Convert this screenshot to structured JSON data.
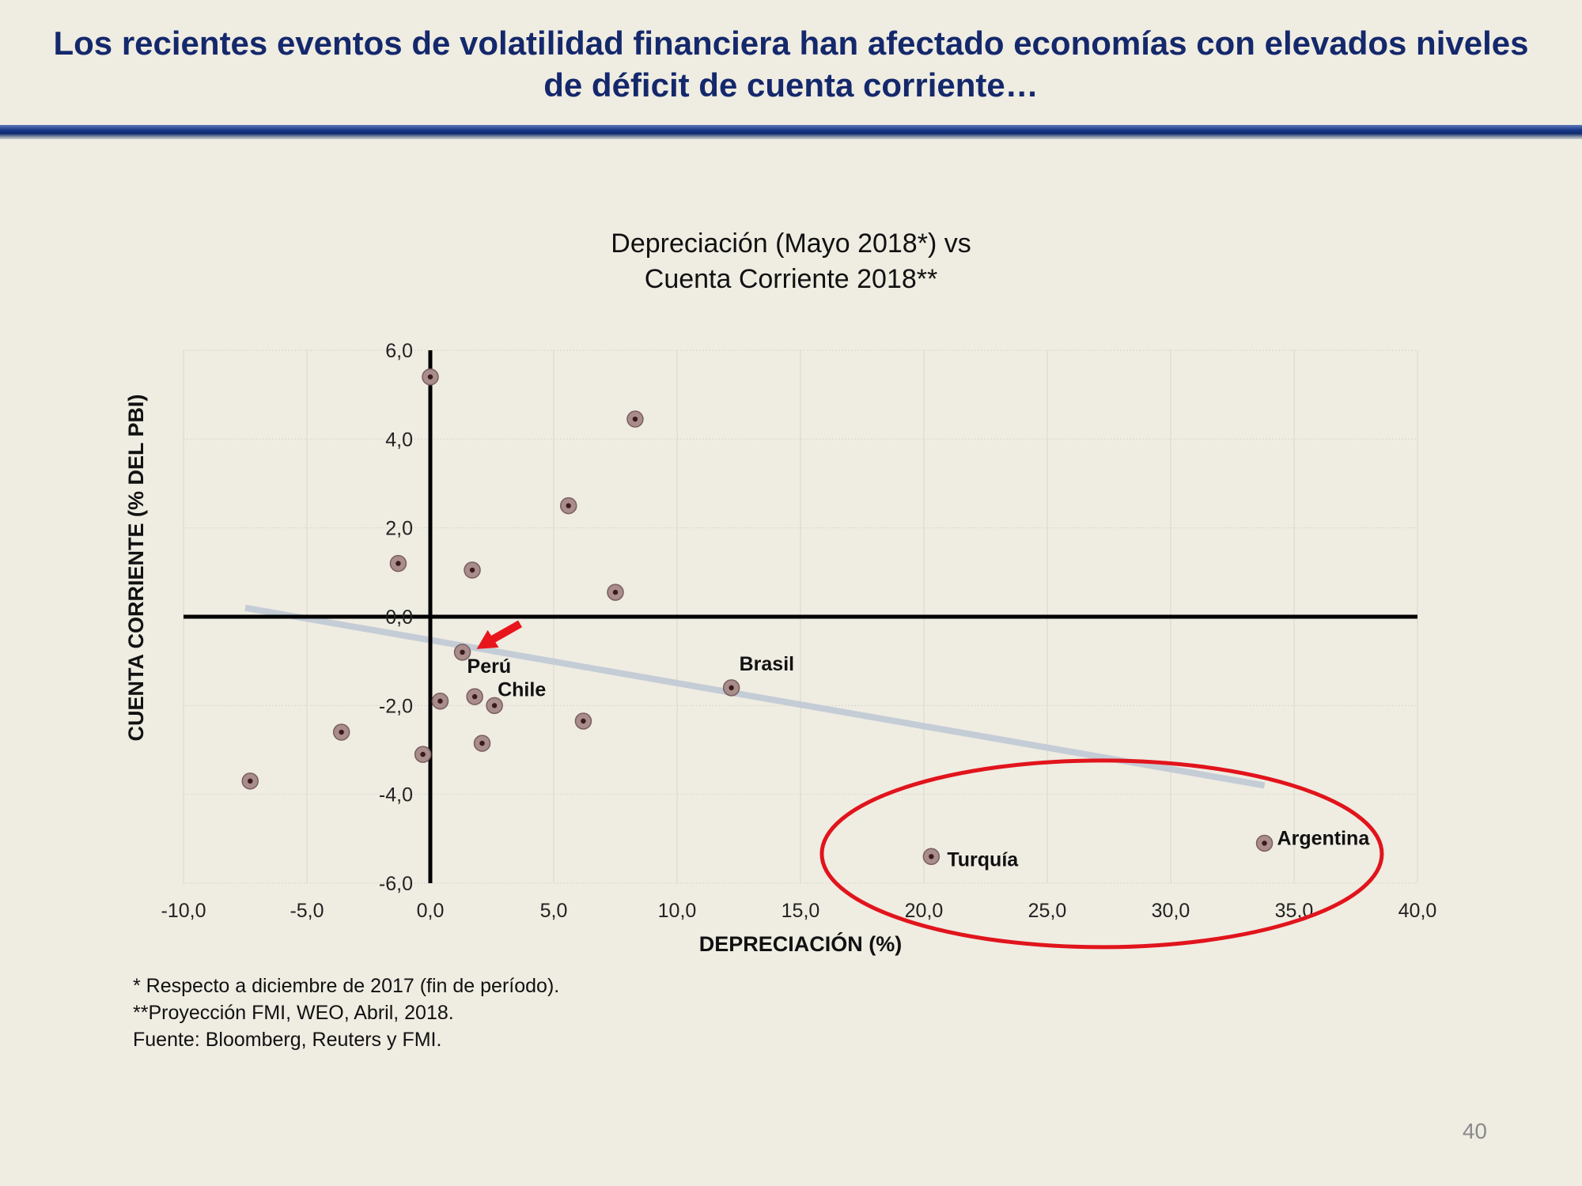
{
  "slide": {
    "title": "Los recientes eventos de volatilidad financiera han afectado economías con elevados niveles de déficit de cuenta corriente…",
    "page_number": "40"
  },
  "footnotes": {
    "note1": "* Respecto a diciembre de 2017 (fin de período).",
    "note2": "**Proyección FMI, WEO, Abril, 2018.",
    "note3": "Fuente: Bloomberg, Reuters y FMI."
  },
  "colors": {
    "background": "#efece2",
    "title_text": "#14286b",
    "marker_fill": "#a98c8c",
    "marker_dot": "#3a1a1a",
    "trendline": "#c4ccd6",
    "highlight_ellipse": "#e1141c",
    "arrow": "#e8161c",
    "grid": "#d9d6cf"
  },
  "chart_data": {
    "type": "scatter",
    "title_line1": "Depreciación (Mayo 2018*) vs",
    "title_line2": "Cuenta Corriente 2018**",
    "xlabel": "DEPRECIACIÓN (%)",
    "ylabel": "CUENTA CORRIENTE (% DEL PBI)",
    "xlim": [
      -10,
      40
    ],
    "ylim": [
      -6,
      6
    ],
    "x_ticks": [
      -10,
      -5,
      0,
      5,
      10,
      15,
      20,
      25,
      30,
      35,
      40
    ],
    "y_ticks": [
      -6,
      -4,
      -2,
      0,
      2,
      4,
      6
    ],
    "x_tick_labels": [
      "-10,0",
      "-5,0",
      "0,0",
      "5,0",
      "10,0",
      "15,0",
      "20,0",
      "25,0",
      "30,0",
      "35,0",
      "40,0"
    ],
    "y_tick_labels": [
      "-6,0",
      "-4,0",
      "-2,0",
      "0,0",
      "2,0",
      "4,0",
      "6,0"
    ],
    "grid": true,
    "points": [
      {
        "x": 0.0,
        "y": 5.4,
        "label": ""
      },
      {
        "x": 8.3,
        "y": 4.45,
        "label": ""
      },
      {
        "x": 5.6,
        "y": 2.5,
        "label": ""
      },
      {
        "x": -1.3,
        "y": 1.2,
        "label": ""
      },
      {
        "x": 1.7,
        "y": 1.05,
        "label": ""
      },
      {
        "x": 7.5,
        "y": 0.55,
        "label": ""
      },
      {
        "x": 1.3,
        "y": -0.8,
        "label": "Perú"
      },
      {
        "x": 1.8,
        "y": -1.8,
        "label": ""
      },
      {
        "x": 2.6,
        "y": -2.0,
        "label": "Chile"
      },
      {
        "x": 0.4,
        "y": -1.9,
        "label": ""
      },
      {
        "x": 6.2,
        "y": -2.35,
        "label": ""
      },
      {
        "x": 2.1,
        "y": -2.85,
        "label": ""
      },
      {
        "x": -0.3,
        "y": -3.1,
        "label": ""
      },
      {
        "x": -3.6,
        "y": -2.6,
        "label": ""
      },
      {
        "x": -7.3,
        "y": -3.7,
        "label": ""
      },
      {
        "x": 12.2,
        "y": -1.6,
        "label": "Brasil"
      },
      {
        "x": 20.3,
        "y": -5.4,
        "label": "Turquía"
      },
      {
        "x": 33.8,
        "y": -5.1,
        "label": "Argentina"
      }
    ],
    "trendline": {
      "x_start": -7.5,
      "y_start": 0.2,
      "x_end": 33.8,
      "y_end": -3.8
    },
    "highlighted": [
      "Turquía",
      "Argentina"
    ],
    "arrow_points_to": "Perú"
  }
}
